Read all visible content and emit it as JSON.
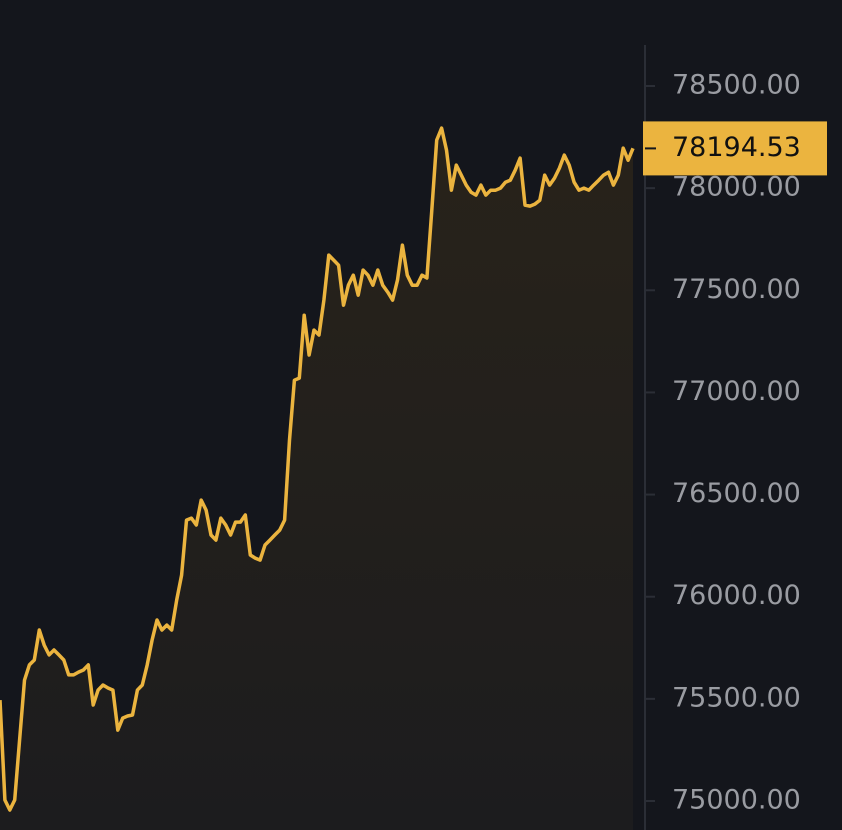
{
  "chart_data": {
    "type": "line",
    "values": [
      75494,
      75005,
      74956,
      75005,
      75299,
      75592,
      75666,
      75690,
      75837,
      75763,
      75715,
      75739,
      75715,
      75690,
      75617,
      75617,
      75631,
      75641,
      75666,
      75470,
      75543,
      75568,
      75553,
      75543,
      75347,
      75406,
      75416,
      75421,
      75543,
      75568,
      75666,
      75788,
      75886,
      75837,
      75861,
      75837,
      75984,
      76106,
      76375,
      76385,
      76351,
      76473,
      76424,
      76302,
      76277,
      76385,
      76351,
      76302,
      76365,
      76365,
      76400,
      76204,
      76189,
      76179,
      76253,
      76277,
      76302,
      76326,
      76375,
      76767,
      77060,
      77070,
      77378,
      77183,
      77305,
      77281,
      77452,
      77672,
      77648,
      77623,
      77427,
      77525,
      77574,
      77476,
      77599,
      77574,
      77525,
      77599,
      77525,
      77491,
      77452,
      77550,
      77721,
      77574,
      77525,
      77525,
      77574,
      77560,
      77892,
      78235,
      78294,
      78186,
      77990,
      78113,
      78064,
      78015,
      77980,
      77966,
      78015,
      77966,
      77990,
      77990,
      78000,
      78029,
      78039,
      78088,
      78147,
      77917,
      77912,
      77922,
      77941,
      78064,
      78015,
      78049,
      78098,
      78162,
      78113,
      78029,
      77990,
      78000,
      77990,
      78015,
      78039,
      78064,
      78078,
      78015,
      78064,
      78196,
      78137,
      78195
    ],
    "color": "#ebb43f",
    "area": true,
    "ylim": [
      74858,
      78921
    ],
    "yticks": [
      {
        "value": 75000,
        "label": "75000.00"
      },
      {
        "value": 75500,
        "label": "75500.00"
      },
      {
        "value": 76000,
        "label": "76000.00"
      },
      {
        "value": 76500,
        "label": "76500.00"
      },
      {
        "value": 77000,
        "label": "77000.00"
      },
      {
        "value": 77500,
        "label": "77500.00"
      },
      {
        "value": 78000,
        "label": "78000.00"
      },
      {
        "value": 78500,
        "label": "78500.00"
      }
    ],
    "current_price": 78194.53
  }
}
